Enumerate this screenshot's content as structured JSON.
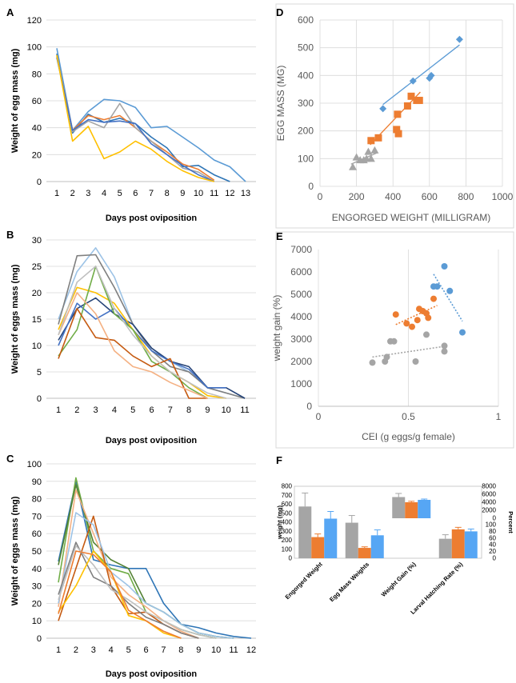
{
  "chart_data": [
    {
      "id": "A",
      "panel_label": "A",
      "type": "line",
      "x": [
        1,
        2,
        3,
        4,
        5,
        6,
        7,
        8,
        9,
        10,
        11,
        12,
        13
      ],
      "xlabel": "Days post oviposition",
      "ylabel": "Weight of egg mass (mg)",
      "ylim": [
        0,
        120
      ],
      "yticks": [
        0,
        20,
        40,
        60,
        80,
        100,
        120
      ],
      "xticks": [
        1,
        2,
        3,
        4,
        5,
        6,
        7,
        8,
        9,
        10,
        11,
        12,
        13
      ],
      "series": [
        {
          "color": "#5B9BD5",
          "values": [
            99,
            38,
            52,
            61,
            60,
            55,
            40,
            41,
            33,
            25,
            16,
            11,
            0
          ]
        },
        {
          "color": "#2E75B6",
          "values": [
            95,
            36,
            50,
            44,
            47,
            43,
            33,
            25,
            11,
            12,
            5,
            0,
            null
          ]
        },
        {
          "color": "#ED7D31",
          "values": [
            93,
            38,
            49,
            46,
            49,
            40,
            30,
            22,
            13,
            9,
            1,
            null,
            null
          ]
        },
        {
          "color": "#A5A5A5",
          "values": [
            94,
            37,
            45,
            40,
            58,
            40,
            30,
            20,
            10,
            7,
            0,
            null,
            null
          ]
        },
        {
          "color": "#4472C4",
          "values": [
            92,
            38,
            46,
            44,
            45,
            43,
            28,
            20,
            12,
            5,
            0,
            null,
            null
          ]
        },
        {
          "color": "#FFC000",
          "values": [
            94,
            30,
            41,
            17,
            22,
            30,
            24,
            15,
            8,
            3,
            0,
            null,
            null
          ]
        }
      ]
    },
    {
      "id": "B",
      "panel_label": "B",
      "type": "line",
      "x": [
        1,
        2,
        3,
        4,
        5,
        6,
        7,
        8,
        9,
        10,
        11
      ],
      "xlabel": "Days post oviposition",
      "ylabel": "Weight of eggs mass (mg)",
      "ylim": [
        0,
        30
      ],
      "yticks": [
        0,
        5,
        10,
        15,
        20,
        25,
        30
      ],
      "xticks": [
        1,
        2,
        3,
        4,
        5,
        6,
        7,
        8,
        9,
        10,
        11
      ],
      "series": [
        {
          "color": "#9DC3E6",
          "values": [
            15,
            24,
            28.5,
            23,
            14,
            9,
            7,
            5,
            2,
            1,
            0
          ]
        },
        {
          "color": "#7F7F7F",
          "values": [
            14,
            27,
            27.2,
            21,
            14,
            9,
            6,
            5,
            2,
            1,
            0
          ]
        },
        {
          "color": "#264478",
          "values": [
            11,
            17,
            19,
            16,
            14,
            9.5,
            7,
            6,
            2,
            2,
            0
          ]
        },
        {
          "color": "#4472C4",
          "values": [
            10,
            18,
            15,
            17,
            13,
            9,
            7,
            5.5,
            2,
            2,
            null
          ]
        },
        {
          "color": "#FFC000",
          "values": [
            13,
            21,
            20,
            18,
            13,
            8,
            5,
            3,
            0.5,
            0,
            null
          ]
        },
        {
          "color": "#70AD47",
          "values": [
            8,
            13,
            25,
            16,
            13,
            7,
            5,
            2,
            0,
            null,
            null
          ]
        },
        {
          "color": "#C55A11",
          "values": [
            7.5,
            17,
            11.5,
            11,
            8,
            6,
            7.5,
            0,
            0,
            null,
            null
          ]
        },
        {
          "color": "#F4B183",
          "values": [
            12,
            20,
            16,
            9,
            6,
            5,
            3,
            1.5,
            0,
            null,
            null
          ]
        },
        {
          "color": "#BFBFBF",
          "values": [
            12,
            22,
            25,
            17,
            12,
            8,
            5,
            3,
            1,
            0,
            null
          ]
        }
      ]
    },
    {
      "id": "C",
      "panel_label": "C",
      "type": "line",
      "x": [
        1,
        2,
        3,
        4,
        5,
        6,
        7,
        8,
        9,
        10,
        11,
        12
      ],
      "xlabel": "Days post oviposition",
      "ylabel": "Weight of eggs mass (mg)",
      "ylim": [
        0,
        100
      ],
      "yticks": [
        0,
        10,
        20,
        30,
        40,
        50,
        60,
        70,
        80,
        90,
        100
      ],
      "xticks": [
        1,
        2,
        3,
        4,
        5,
        6,
        7,
        8,
        9,
        10,
        11,
        12
      ],
      "series": [
        {
          "color": "#2E75B6",
          "values": [
            44,
            90,
            45,
            42,
            40,
            40,
            20,
            8,
            6,
            3,
            1,
            0
          ]
        },
        {
          "color": "#70AD47",
          "values": [
            32,
            92,
            50,
            40,
            37,
            15,
            10,
            5,
            2,
            0,
            null,
            null
          ]
        },
        {
          "color": "#548235",
          "values": [
            42,
            88,
            55,
            45,
            40,
            20,
            15,
            8,
            3,
            1,
            0,
            null
          ]
        },
        {
          "color": "#F4B183",
          "values": [
            18,
            85,
            60,
            35,
            25,
            18,
            10,
            4,
            0,
            null,
            null,
            null
          ]
        },
        {
          "color": "#C55A11",
          "values": [
            10,
            40,
            70,
            30,
            14,
            15,
            8,
            3,
            0,
            null,
            null,
            null
          ]
        },
        {
          "color": "#9DC3E6",
          "values": [
            20,
            72,
            65,
            38,
            30,
            20,
            15,
            8,
            3,
            1,
            0,
            null
          ]
        },
        {
          "color": "#7F7F7F",
          "values": [
            25,
            55,
            35,
            30,
            20,
            12,
            8,
            3,
            0,
            null,
            null,
            null
          ]
        },
        {
          "color": "#BFBFBF",
          "values": [
            22,
            53,
            42,
            28,
            22,
            15,
            10,
            5,
            2,
            0,
            null,
            null
          ]
        },
        {
          "color": "#FFC000",
          "values": [
            15,
            30,
            50,
            38,
            13,
            10,
            3,
            0,
            null,
            null,
            null,
            null
          ]
        },
        {
          "color": "#ED7D31",
          "values": [
            14,
            50,
            48,
            38,
            16,
            10,
            4,
            0,
            null,
            null,
            null,
            null
          ]
        }
      ]
    },
    {
      "id": "D",
      "panel_label": "D",
      "type": "scatter",
      "xlabel": "ENGORGED WEIGHT (MILLIGRAM)",
      "ylabel": "EGG MASS (MG)",
      "xlim": [
        0,
        1000
      ],
      "ylim": [
        0,
        600
      ],
      "xticks": [
        0,
        200,
        400,
        600,
        800,
        1000
      ],
      "yticks": [
        0,
        100,
        200,
        300,
        400,
        500,
        600
      ],
      "series": [
        {
          "color": "#5B9BD5",
          "marker": "diamond",
          "points": [
            [
              345,
              280
            ],
            [
              510,
              380
            ],
            [
              600,
              390
            ],
            [
              610,
              400
            ],
            [
              765,
              530
            ]
          ],
          "trend": [
            [
              345,
              295
            ],
            [
              765,
              510
            ]
          ]
        },
        {
          "color": "#ED7D31",
          "marker": "square",
          "points": [
            [
              280,
              165
            ],
            [
              320,
              175
            ],
            [
              420,
              205
            ],
            [
              425,
              260
            ],
            [
              430,
              190
            ],
            [
              480,
              290
            ],
            [
              500,
              325
            ],
            [
              530,
              310
            ],
            [
              545,
              310
            ]
          ],
          "trend": [
            [
              275,
              150
            ],
            [
              550,
              340
            ]
          ]
        },
        {
          "color": "#A5A5A5",
          "marker": "triangle",
          "points": [
            [
              180,
              70
            ],
            [
              200,
              105
            ],
            [
              220,
              95
            ],
            [
              240,
              95
            ],
            [
              255,
              100
            ],
            [
              265,
              125
            ],
            [
              280,
              100
            ],
            [
              300,
              130
            ]
          ],
          "trend": [
            [
              170,
              80
            ],
            [
              310,
              120
            ]
          ]
        }
      ]
    },
    {
      "id": "E",
      "panel_label": "E",
      "type": "scatter",
      "xlabel": "CEI (g eggs/g female)",
      "ylabel": "weight gain (%)",
      "xlim": [
        0,
        1
      ],
      "ylim": [
        0,
        7000
      ],
      "xticks": [
        0,
        0.5,
        1
      ],
      "xticklabels": [
        "0",
        "0.5",
        "1"
      ],
      "yticks": [
        0,
        1000,
        2000,
        3000,
        4000,
        5000,
        6000,
        7000
      ],
      "series": [
        {
          "color": "#5B9BD5",
          "marker": "circle",
          "points": [
            [
              0.64,
              5350
            ],
            [
              0.66,
              5350
            ],
            [
              0.7,
              6250
            ],
            [
              0.73,
              5150
            ],
            [
              0.8,
              3300
            ]
          ],
          "trend": [
            [
              0.64,
              5900
            ],
            [
              0.8,
              3800
            ]
          ]
        },
        {
          "color": "#ED7D31",
          "marker": "circle",
          "points": [
            [
              0.43,
              4100
            ],
            [
              0.49,
              3700
            ],
            [
              0.52,
              3550
            ],
            [
              0.55,
              3850
            ],
            [
              0.56,
              4350
            ],
            [
              0.58,
              4250
            ],
            [
              0.6,
              4150
            ],
            [
              0.61,
              3950
            ],
            [
              0.64,
              4800
            ]
          ],
          "trend": [
            [
              0.43,
              3650
            ],
            [
              0.66,
              4500
            ]
          ]
        },
        {
          "color": "#A5A5A5",
          "marker": "circle",
          "points": [
            [
              0.3,
              1950
            ],
            [
              0.37,
              2000
            ],
            [
              0.38,
              2200
            ],
            [
              0.4,
              2900
            ],
            [
              0.42,
              2900
            ],
            [
              0.54,
              2000
            ],
            [
              0.6,
              3200
            ],
            [
              0.7,
              2450
            ],
            [
              0.7,
              2700
            ]
          ],
          "trend": [
            [
              0.3,
              2200
            ],
            [
              0.72,
              2700
            ]
          ]
        }
      ]
    },
    {
      "id": "F",
      "panel_label": "F",
      "type": "bar",
      "categories": [
        "Engorged Weight",
        "Egg Mass Weights",
        "Weight Gain (%)",
        "Larval Hatching Rate (%)"
      ],
      "ylabel_left": "weight (mg)",
      "ylabel_right": "Percent",
      "left_ylim": [
        0,
        800
      ],
      "left_yticks": [
        0,
        100,
        200,
        300,
        400,
        500,
        600,
        700,
        800
      ],
      "right_top_ylim": [
        0,
        8000
      ],
      "right_top_ticks": [
        0,
        2000,
        4000,
        6000,
        8000
      ],
      "right_bottom_ylim": [
        0,
        100
      ],
      "right_bottom_ticks": [
        0,
        20,
        40,
        60,
        80,
        100
      ],
      "series": [
        {
          "name": "grey",
          "color": "#A5A5A5",
          "values": [
            575,
            395,
            5300,
            58
          ],
          "errors": [
            150,
            80,
            900,
            12
          ]
        },
        {
          "name": "orange",
          "color": "#ED7D31",
          "values": [
            235,
            115,
            4000,
            86
          ],
          "errors": [
            35,
            12,
            250,
            6
          ]
        },
        {
          "name": "blue",
          "color": "#56A6F4",
          "values": [
            440,
            255,
            4600,
            80
          ],
          "errors": [
            80,
            60,
            200,
            7
          ]
        }
      ]
    }
  ]
}
